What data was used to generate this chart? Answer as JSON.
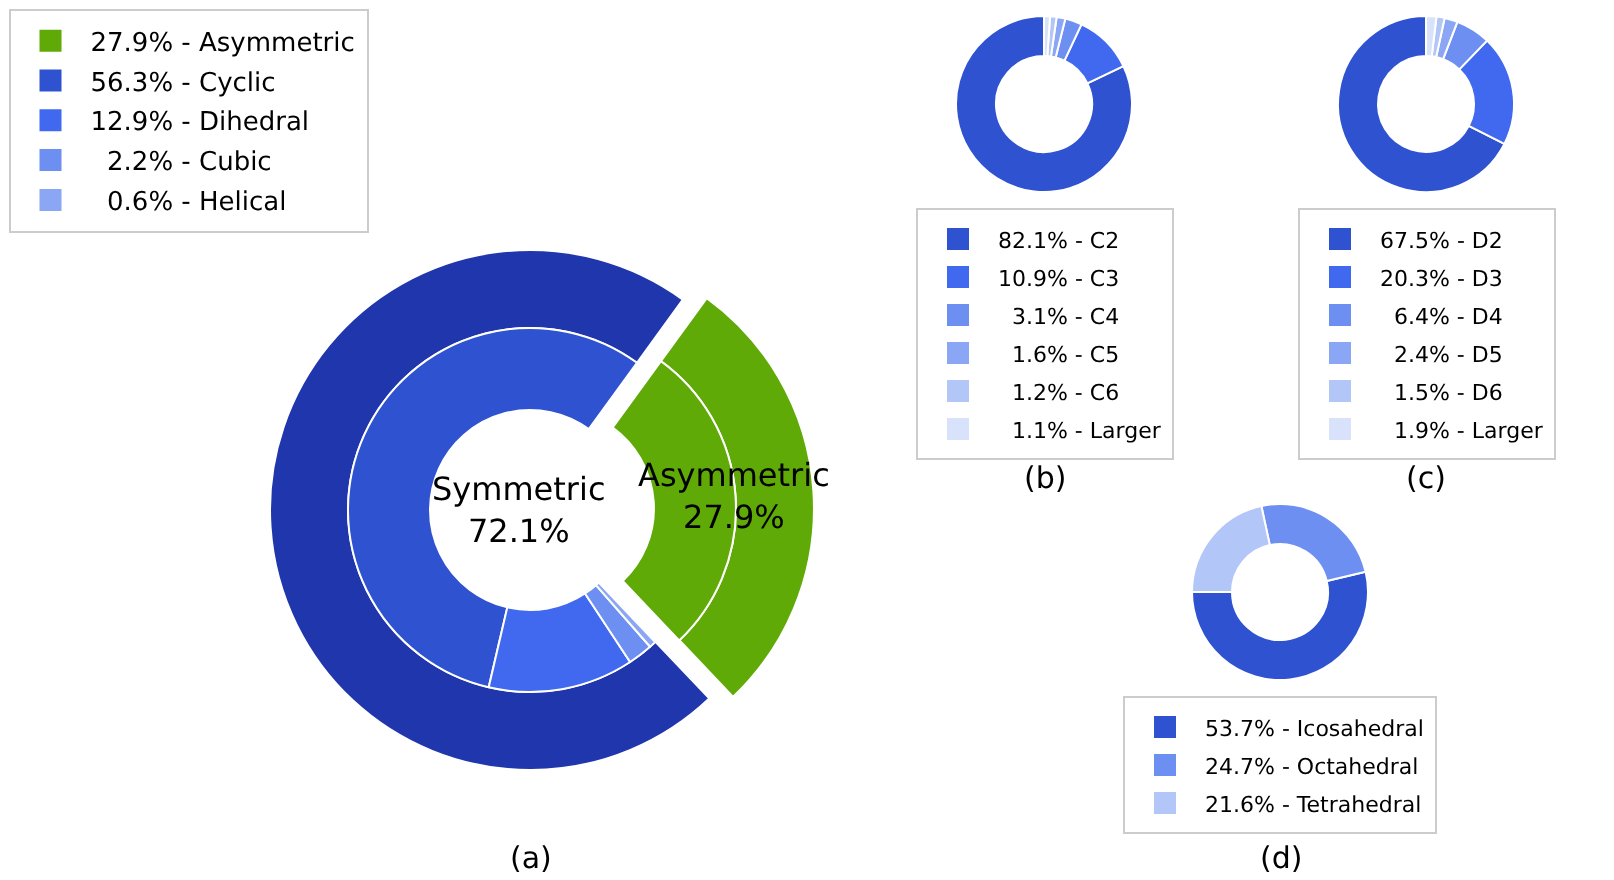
{
  "chart_data": [
    {
      "type": "donut",
      "xlabel": "(a)",
      "legend": "top left",
      "categories": [
        null,
        "27.9% - Asymmetric",
        "56.3% - Cyclic",
        "12.9% - Dihedral",
        "  2.2% - Cubic",
        "  0.6% - Helical"
      ],
      "series": [
        {
          "values": [
            72.1,
            27.9,
            null,
            null,
            null,
            null
          ]
        },
        {
          "values": [
            null,
            27.9,
            56.3,
            12.9,
            2.2,
            0.6
          ]
        }
      ],
      "colors": [
        "#1f36ad",
        "#5faa06",
        "#2e52d0",
        "#4169f0",
        "#6d8ff2",
        "#8aa6f5"
      ],
      "annotations": [
        "Symmetric\n72.1%",
        "Asymmetric\n27.9%"
      ]
    },
    {
      "type": "donut",
      "xlabel": "(b)",
      "legend": "bottom",
      "categories": [
        "82.1% - C2",
        "10.9% - C3",
        "  3.1% - C4",
        "  1.6% - C5",
        "  1.2% - C6",
        "  1.1% - Larger"
      ],
      "values": [
        82.1,
        10.9,
        3.1,
        1.6,
        1.2,
        1.1
      ],
      "colors": [
        "#2e52d0",
        "#4169f0",
        "#6d8ff2",
        "#8aa6f5",
        "#b2c6f7",
        "#d8e3fb"
      ]
    },
    {
      "type": "donut",
      "xlabel": "(c)",
      "legend": "bottom",
      "categories": [
        "67.5% - D2",
        "20.3% - D3",
        "  6.4% - D4",
        "  2.4% - D5",
        "  1.5% - D6",
        "  1.9% - Larger"
      ],
      "values": [
        67.5,
        20.3,
        6.4,
        2.4,
        1.5,
        1.9
      ],
      "colors": [
        "#2e52d0",
        "#4169f0",
        "#6d8ff2",
        "#8aa6f5",
        "#b2c6f7",
        "#d8e3fb"
      ]
    },
    {
      "type": "donut",
      "xlabel": "(d)",
      "legend": "bottom",
      "categories": [
        "53.7% - Icosahedral",
        "24.7% - Octahedral",
        "21.6% - Tetrahedral"
      ],
      "values": [
        53.7,
        24.7,
        21.6
      ],
      "colors": [
        "#2e52d0",
        "#6d8ff2",
        "#b2c6f7"
      ]
    }
  ]
}
